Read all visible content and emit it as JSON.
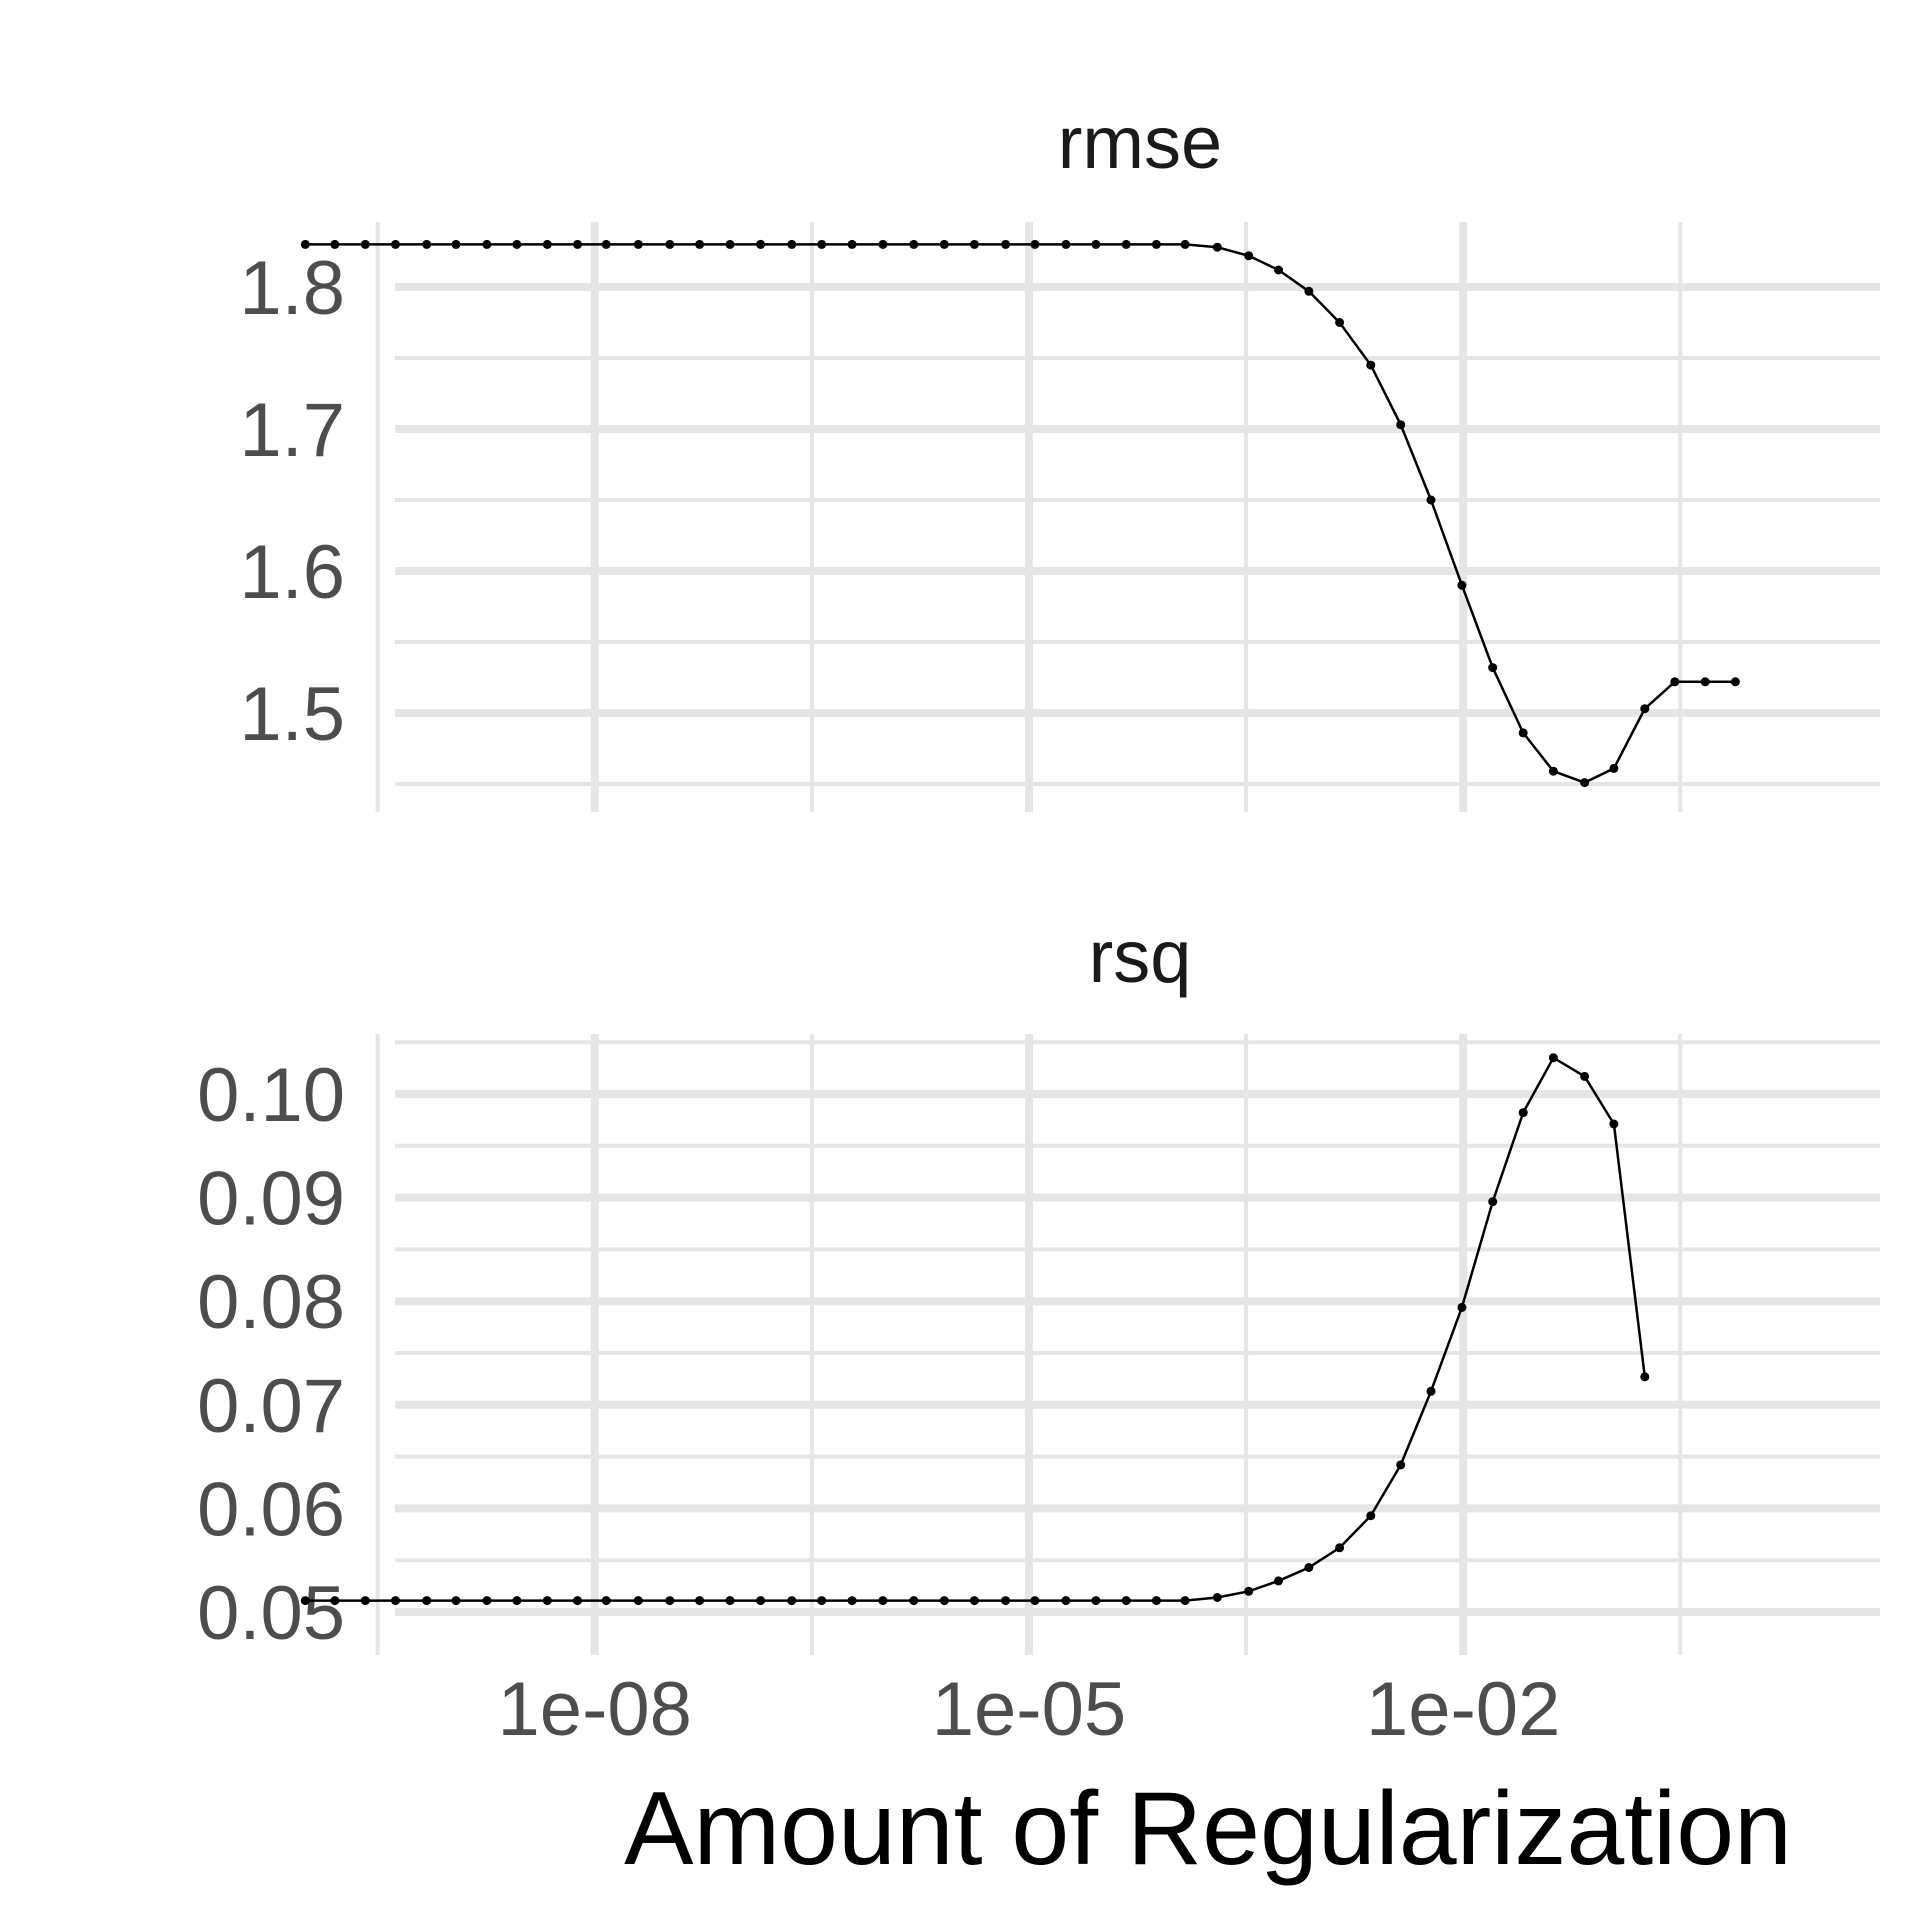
{
  "chart_data": {
    "type": "line",
    "xlabel": "Amount of Regularization",
    "x_scale": "log10",
    "x_range": [
      1e-10,
      10
    ],
    "x_ticks": [
      {
        "value": 1e-08,
        "label": "1e-08"
      },
      {
        "value": 1e-05,
        "label": "1e-05"
      },
      {
        "value": 0.01,
        "label": "1e-02"
      }
    ],
    "grid": true,
    "legend": "none",
    "line_color": "#000000",
    "grid_color": "#e5e5e5",
    "x": [
      1e-10,
      1.6e-10,
      2.6e-10,
      4.2e-10,
      6.9e-10,
      1.1e-09,
      1.8e-09,
      2.9e-09,
      4.7e-09,
      7.6e-09,
      1.2e-08,
      2e-08,
      3.3e-08,
      5.3e-08,
      8.6e-08,
      1.4e-07,
      2.3e-07,
      3.7e-07,
      6e-07,
      9.8e-07,
      1.6e-06,
      2.6e-06,
      4.2e-06,
      6.9e-06,
      1.1e-05,
      1.8e-05,
      2.9e-05,
      4.7e-05,
      7.6e-05,
      0.00012,
      0.0002,
      0.00033,
      0.00053,
      0.00086,
      0.0014,
      0.0023,
      0.0037,
      0.006,
      0.0098,
      0.016,
      0.026,
      0.042,
      0.069,
      0.11,
      0.18,
      0.29,
      0.47,
      0.76,
      1.2,
      2.0
    ],
    "panels": [
      {
        "title": "rmse",
        "ylim": [
          1.45,
          1.83
        ],
        "y_ticks": [
          {
            "value": 1.5,
            "label": "1.5"
          },
          {
            "value": 1.6,
            "label": "1.6"
          },
          {
            "value": 1.7,
            "label": "1.7"
          },
          {
            "value": 1.8,
            "label": "1.8"
          }
        ],
        "y_minor": [
          1.45,
          1.55,
          1.65,
          1.75
        ],
        "values": [
          1.83,
          1.83,
          1.83,
          1.83,
          1.83,
          1.83,
          1.83,
          1.83,
          1.83,
          1.83,
          1.83,
          1.83,
          1.83,
          1.83,
          1.83,
          1.83,
          1.83,
          1.83,
          1.83,
          1.83,
          1.83,
          1.83,
          1.83,
          1.83,
          1.83,
          1.83,
          1.83,
          1.83,
          1.83,
          1.83,
          1.828,
          1.822,
          1.812,
          1.797,
          1.775,
          1.745,
          1.703,
          1.65,
          1.59,
          1.532,
          1.486,
          1.459,
          1.451,
          1.461,
          1.503,
          1.522,
          1.522,
          1.522,
          null,
          null
        ]
      },
      {
        "title": "rsq",
        "ylim": [
          0.05,
          0.104
        ],
        "y_ticks": [
          {
            "value": 0.05,
            "label": "0.05"
          },
          {
            "value": 0.06,
            "label": "0.06"
          },
          {
            "value": 0.07,
            "label": "0.07"
          },
          {
            "value": 0.08,
            "label": "0.08"
          },
          {
            "value": 0.09,
            "label": "0.09"
          },
          {
            "value": 0.1,
            "label": "0.10"
          }
        ],
        "y_minor": [
          0.055,
          0.065,
          0.075,
          0.085,
          0.095,
          0.105
        ],
        "values": [
          0.0511,
          0.0511,
          0.0511,
          0.0511,
          0.0511,
          0.0511,
          0.0511,
          0.0511,
          0.0511,
          0.0511,
          0.0511,
          0.0511,
          0.0511,
          0.0511,
          0.0511,
          0.0511,
          0.0511,
          0.0511,
          0.0511,
          0.0511,
          0.0511,
          0.0511,
          0.0511,
          0.0511,
          0.0511,
          0.0511,
          0.0511,
          0.0511,
          0.0511,
          0.0511,
          0.0514,
          0.052,
          0.053,
          0.0543,
          0.0562,
          0.0593,
          0.0642,
          0.0713,
          0.0794,
          0.0896,
          0.0982,
          0.1035,
          0.1017,
          0.0971,
          0.0727,
          null,
          null,
          null,
          null,
          null
        ]
      }
    ]
  }
}
